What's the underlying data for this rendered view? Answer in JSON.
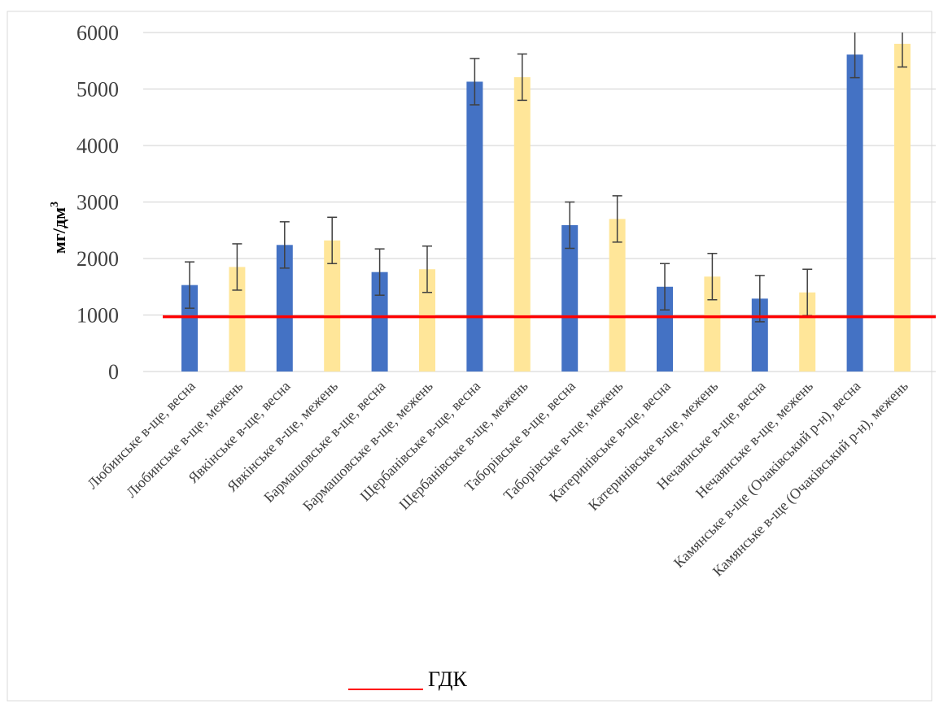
{
  "chart_data": {
    "type": "bar",
    "ylabel": "мг/дм",
    "ylabel_sup": "3",
    "ylim": [
      0,
      6000
    ],
    "yticks": [
      0,
      1000,
      2000,
      3000,
      4000,
      5000,
      6000
    ],
    "grid": true,
    "categories": [
      "Любинське в-ще, весна",
      "Любинське в-ще, межень",
      "Явкінське в-ще, весна",
      "Явкінське в-ще, межень",
      "Бармашовське в-ще, весна",
      "Бармашовське в-ще, межень",
      "Щербанівське в-ще, весна",
      "Щербанівське в-ще, межень",
      "Таборівське в-ще, весна",
      "Таборівське в-ще, межень",
      "Катеринівське в-ще, весна",
      "Катеринівське в-ще, межень",
      "Нечаянське в-ще, весна",
      "Нечаянське в-ще, межень",
      "Камянське в-ще (Очаківський р-н), весна",
      "Камянське в-ще (Очаківський р-н), межень"
    ],
    "values": [
      1530,
      1850,
      2240,
      2320,
      1760,
      1810,
      5130,
      5210,
      2590,
      2700,
      1500,
      1680,
      1290,
      1400,
      5610,
      5800
    ],
    "error": 410,
    "bar_colors": [
      "#4472C4",
      "#FFE699"
    ],
    "reference_line": {
      "value": 970,
      "label": "ГДК",
      "color": "#FF0000"
    },
    "legend": {
      "position": "bottom",
      "entries": [
        "ГДК"
      ]
    }
  }
}
